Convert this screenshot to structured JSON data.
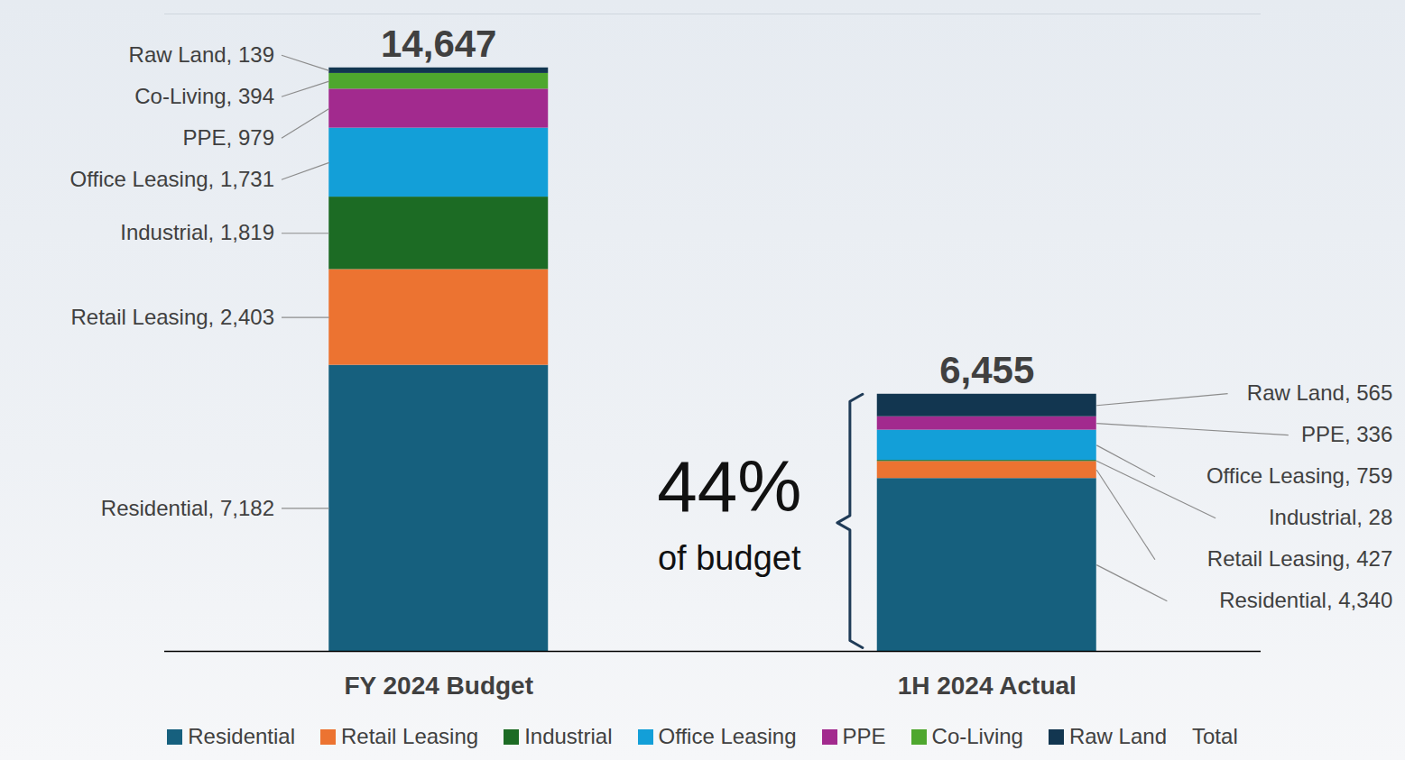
{
  "chart_data": {
    "type": "bar",
    "stacked": true,
    "data_labels": true,
    "tick_labels": "x",
    "grid": false,
    "legend": "bottom",
    "categories": [
      "FY 2024 Budget",
      "1H 2024 Actual"
    ],
    "series": [
      {
        "name": "Residential",
        "color": "#16607e",
        "values": [
          7182,
          4340
        ],
        "value_labels": [
          "Residential, 7,182",
          "Residential, 4,340"
        ]
      },
      {
        "name": "Retail Leasing",
        "color": "#ec7331",
        "values": [
          2403,
          427
        ],
        "value_labels": [
          "Retail Leasing, 2,403",
          "Retail Leasing, 427"
        ]
      },
      {
        "name": "Industrial",
        "color": "#1c6b24",
        "values": [
          1819,
          28
        ],
        "value_labels": [
          "Industrial, 1,819",
          "Industrial, 28"
        ]
      },
      {
        "name": "Office Leasing",
        "color": "#139fd8",
        "values": [
          1731,
          759
        ],
        "value_labels": [
          "Office Leasing, 1,731",
          "Office Leasing, 759"
        ]
      },
      {
        "name": "PPE",
        "color": "#a22a8e",
        "values": [
          979,
          336
        ],
        "value_labels": [
          "PPE, 979",
          "PPE, 336"
        ]
      },
      {
        "name": "Co-Living",
        "color": "#4ea72e",
        "values": [
          394,
          null
        ],
        "value_labels": [
          "Co-Living, 394",
          null
        ]
      },
      {
        "name": "Raw Land",
        "color": "#123650",
        "values": [
          139,
          565
        ],
        "value_labels": [
          "Raw Land, 139",
          "Raw Land, 565"
        ]
      }
    ],
    "totals": {
      "name": "Total",
      "values": [
        14647,
        6455
      ],
      "value_labels": [
        "14,647",
        "6,455"
      ]
    },
    "annotation": {
      "value": 44,
      "label": "44%",
      "text": "of budget"
    },
    "ylim": [
      0,
      16000
    ],
    "yticks": []
  }
}
